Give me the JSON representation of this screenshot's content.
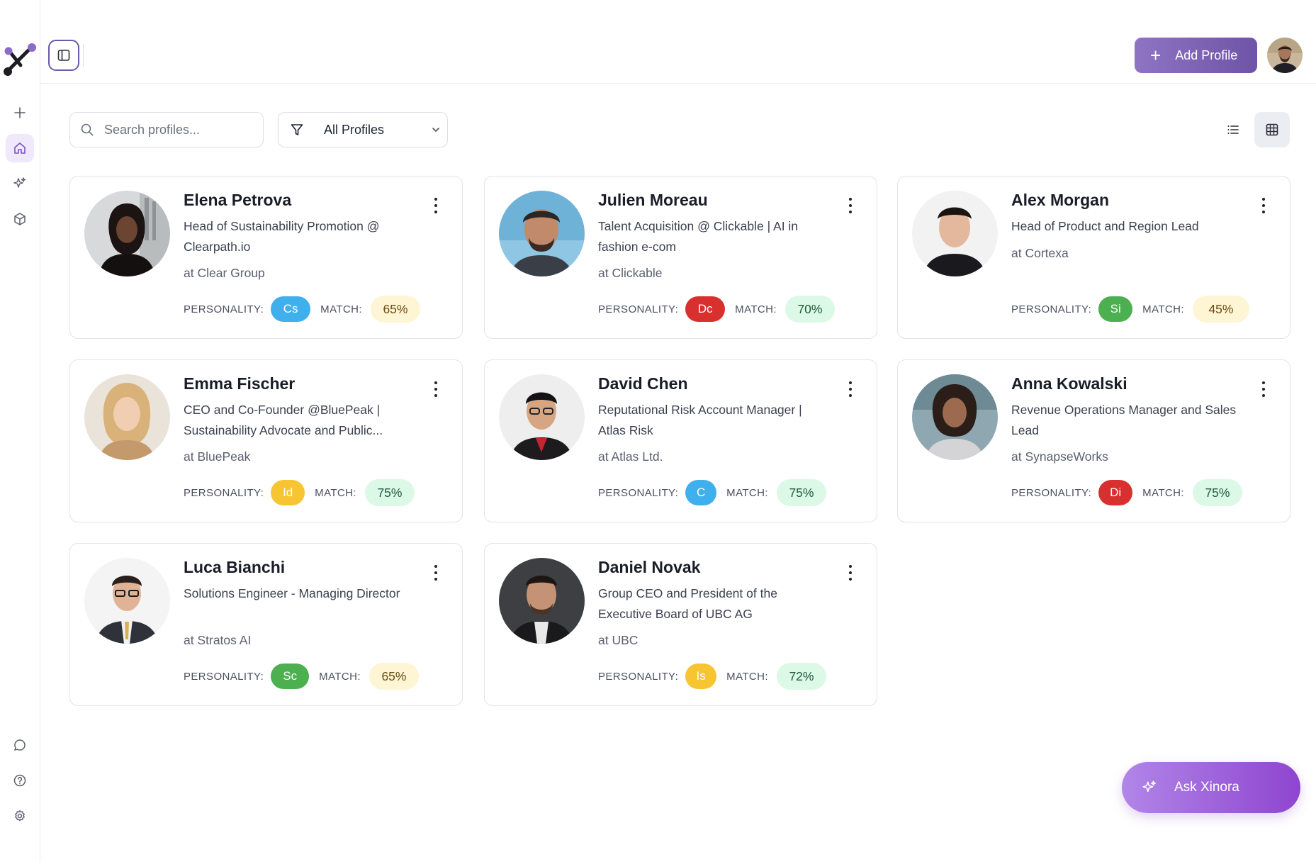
{
  "header": {
    "add_profile_label": "Add Profile"
  },
  "toolbar": {
    "search_placeholder": "Search profiles...",
    "filter_label": "All Profiles"
  },
  "labels": {
    "personality": "PERSONALITY:",
    "match": "MATCH:"
  },
  "colors": {
    "accent": "#7c53c4",
    "badge_blue": "#3fb0ec",
    "badge_red": "#d8302f",
    "badge_green": "#4caf50",
    "badge_yellow": "#f7c531"
  },
  "profiles": [
    {
      "name": "Elena Petrova",
      "title": "Head of Sustainability Promotion @ Clearpath.io",
      "company": "at Clear Group",
      "personality": "Cs",
      "personality_color": "blue",
      "match": "65%",
      "match_tone": "yellow"
    },
    {
      "name": "Julien Moreau",
      "title": "Talent Acquisition @ Clickable | AI in fashion e-com",
      "company": "at Clickable",
      "personality": "Dc",
      "personality_color": "red",
      "match": "70%",
      "match_tone": "green"
    },
    {
      "name": "Alex Morgan",
      "title": "Head of Product and Region Lead",
      "company": "at Cortexa",
      "personality": "Si",
      "personality_color": "green",
      "match": "45%",
      "match_tone": "yellow"
    },
    {
      "name": "Emma Fischer",
      "title": "CEO and Co-Founder @BluePeak | Sustainability Advocate and Public...",
      "company": "at BluePeak",
      "personality": "Id",
      "personality_color": "yellow",
      "match": "75%",
      "match_tone": "green"
    },
    {
      "name": "David Chen",
      "title": "Reputational Risk Account Manager | Atlas Risk",
      "company": "at Atlas Ltd.",
      "personality": "C",
      "personality_color": "blue",
      "match": "75%",
      "match_tone": "green"
    },
    {
      "name": "Anna Kowalski",
      "title": "Revenue Operations Manager and Sales Lead",
      "company": "at SynapseWorks",
      "personality": "Di",
      "personality_color": "red",
      "match": "75%",
      "match_tone": "green"
    },
    {
      "name": "Luca Bianchi",
      "title": "Solutions Engineer - Managing Director",
      "company": "at Stratos AI",
      "personality": "Sc",
      "personality_color": "green",
      "match": "65%",
      "match_tone": "yellow"
    },
    {
      "name": "Daniel Novak",
      "title": "Group CEO and President of the Executive Board of UBC AG",
      "company": "at UBC",
      "personality": "Is",
      "personality_color": "yellow",
      "match": "72%",
      "match_tone": "green"
    }
  ],
  "ask": {
    "label": "Ask Xinora"
  }
}
